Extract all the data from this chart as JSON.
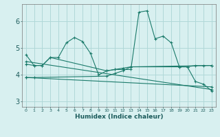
{
  "xlabel": "Humidex (Indice chaleur)",
  "bg_color": "#d8f0f0",
  "grid_color": "#b0d8d8",
  "line_color": "#1a7a6a",
  "xlim": [
    -0.5,
    23.5
  ],
  "ylim": [
    2.8,
    6.65
  ],
  "yticks": [
    3,
    4,
    5,
    6
  ],
  "xtick_labels": [
    "0",
    "1",
    "2",
    "3",
    "4",
    "5",
    "6",
    "7",
    "8",
    "9",
    "10",
    "11",
    "12",
    "13",
    "14",
    "15",
    "16",
    "17",
    "18",
    "19",
    "20",
    "21",
    "22",
    "23"
  ],
  "line1_x": [
    0,
    1,
    2,
    3,
    4,
    5,
    6,
    7,
    8,
    9,
    10,
    11,
    12,
    13,
    14,
    15,
    16,
    17,
    18,
    19,
    20,
    21,
    22,
    23
  ],
  "line1_y": [
    4.75,
    4.35,
    4.35,
    4.65,
    4.65,
    5.2,
    5.4,
    5.25,
    4.8,
    4.0,
    4.15,
    4.2,
    4.2,
    4.2,
    6.35,
    6.4,
    5.35,
    5.45,
    5.2,
    4.3,
    4.3,
    3.75,
    3.65,
    3.4
  ],
  "line2_x": [
    0,
    1,
    2,
    3,
    10,
    11,
    12,
    13,
    19,
    20,
    21,
    22,
    23
  ],
  "line2_y": [
    4.4,
    4.35,
    4.35,
    4.65,
    4.15,
    4.2,
    4.25,
    4.3,
    4.3,
    4.3,
    4.35,
    4.35,
    4.35
  ],
  "line3_x": [
    0,
    23
  ],
  "line3_y": [
    4.5,
    3.45
  ],
  "line4_x": [
    0,
    23
  ],
  "line4_y": [
    3.9,
    3.55
  ],
  "line5_x": [
    0,
    1,
    10,
    11,
    12,
    13,
    23
  ],
  "line5_y": [
    3.9,
    3.9,
    3.95,
    4.05,
    4.15,
    4.3,
    4.35
  ]
}
